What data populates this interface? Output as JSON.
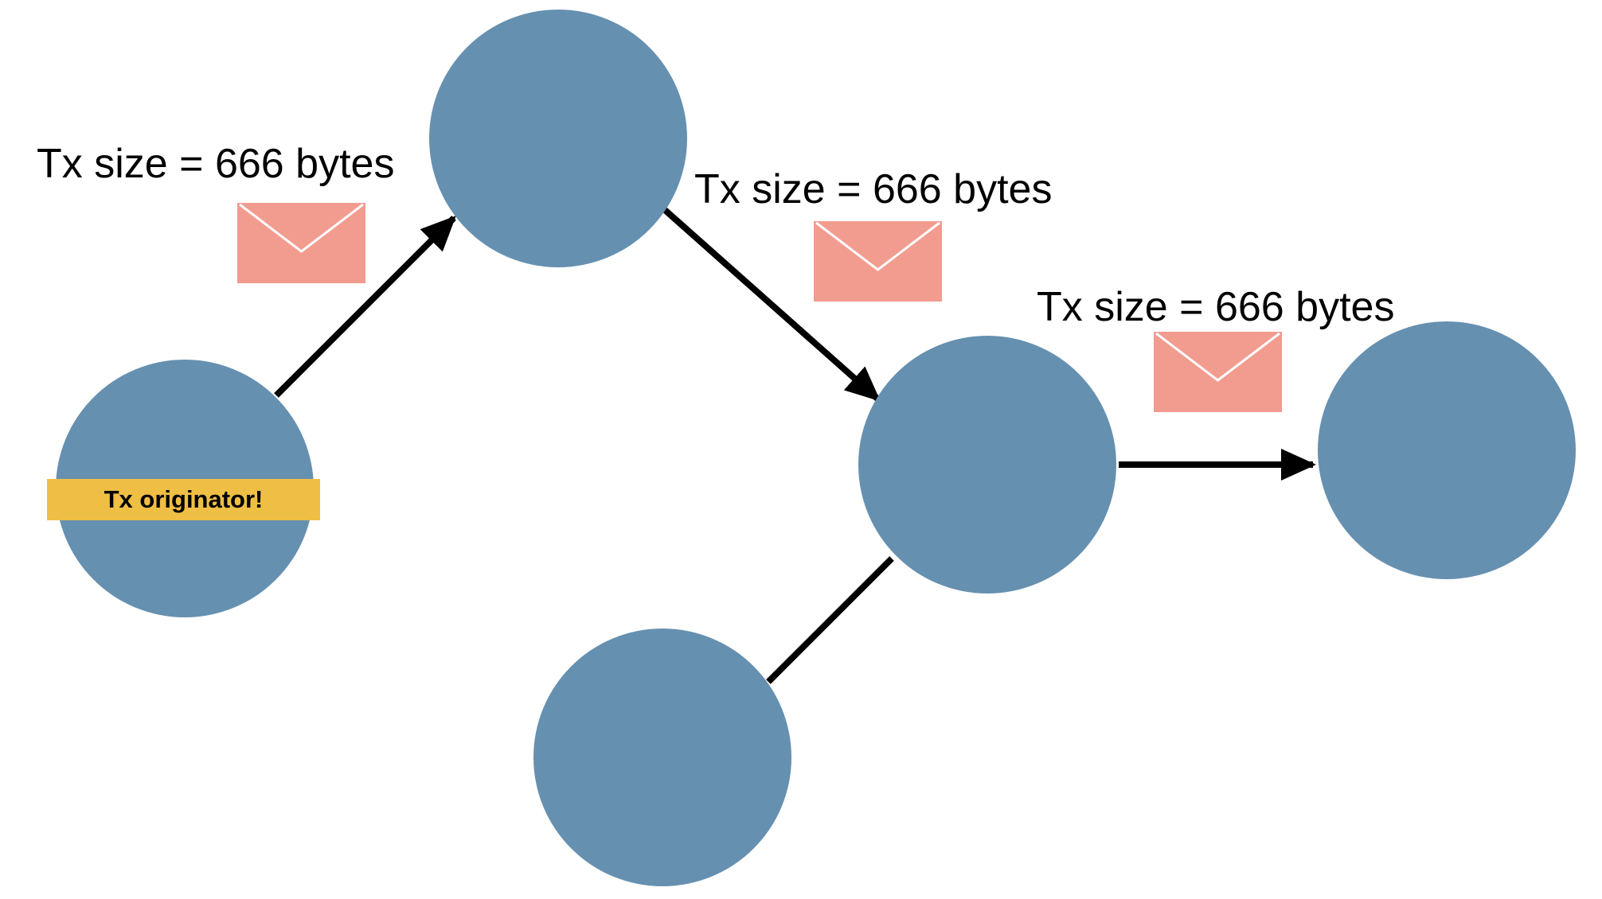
{
  "colors": {
    "node": "#6690b0",
    "envelope": "#f29b8f",
    "badge": "#efbe44",
    "edge": "#000000"
  },
  "nodes": [
    {
      "id": "originator",
      "badge": "Tx originator!"
    },
    {
      "id": "relay-1"
    },
    {
      "id": "relay-2"
    },
    {
      "id": "receiver"
    },
    {
      "id": "peer-bottom"
    }
  ],
  "messages": [
    {
      "label": "Tx size = 666 bytes",
      "icon": "envelope-icon"
    },
    {
      "label": "Tx size = 666 bytes",
      "icon": "envelope-icon"
    },
    {
      "label": "Tx size = 666 bytes",
      "icon": "envelope-icon"
    }
  ]
}
